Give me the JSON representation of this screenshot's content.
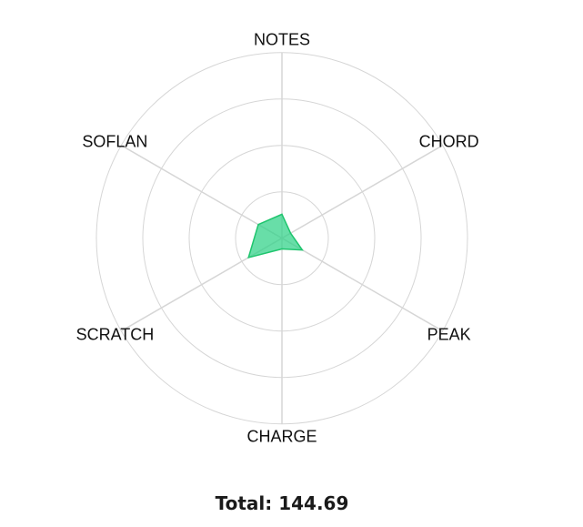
{
  "chart_data": {
    "type": "radar",
    "categories": [
      "NOTES",
      "CHORD",
      "PEAK",
      "CHARGE",
      "SCRATCH",
      "SOFLAN"
    ],
    "values": [
      25.8,
      10.7,
      25.4,
      11.6,
      41.7,
      29.49
    ],
    "rlim": [
      0,
      200
    ],
    "ring_step": 50,
    "grid": true,
    "colors": {
      "fill": "#2ed187",
      "stroke": "#1fc56e",
      "grid": "#d6d6d6"
    }
  },
  "total": {
    "label": "Total: 144.69"
  }
}
